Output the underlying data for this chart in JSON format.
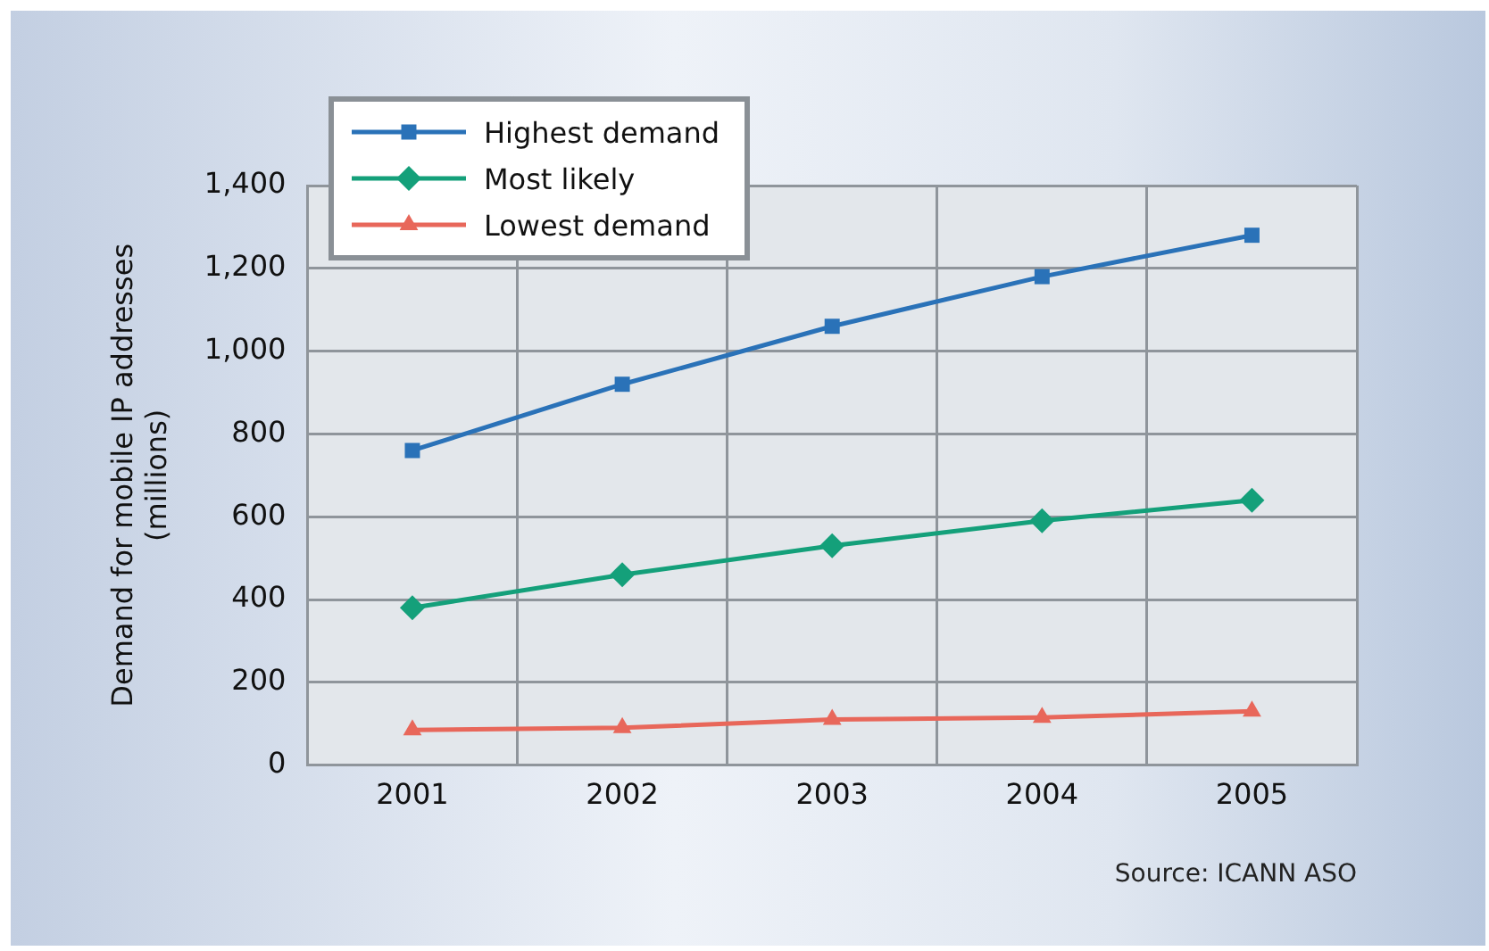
{
  "chart_data": {
    "type": "line",
    "ylabel": "Demand for mobile IP addresses\n(millions)",
    "categories": [
      "2001",
      "2002",
      "2003",
      "2004",
      "2005"
    ],
    "series": [
      {
        "name": "Highest demand",
        "color": "#2a72b8",
        "marker": "square",
        "values": [
          760,
          920,
          1060,
          1180,
          1280
        ]
      },
      {
        "name": "Most likely",
        "color": "#14a07a",
        "marker": "diamond",
        "values": [
          380,
          460,
          530,
          590,
          640
        ]
      },
      {
        "name": "Lowest demand",
        "color": "#e8675a",
        "marker": "triangle",
        "values": [
          85,
          90,
          110,
          115,
          130
        ]
      }
    ],
    "ylim": [
      0,
      1400
    ],
    "yticks": [
      0,
      200,
      400,
      600,
      800,
      {
        "value": 1000,
        "label": "1,000"
      },
      {
        "value": 1200,
        "label": "1,200"
      },
      {
        "value": 1400,
        "label": "1,400"
      }
    ],
    "grid": true,
    "legend": "top left",
    "line_style": "solid",
    "annotations": [
      "Source: ICANN ASO"
    ]
  }
}
